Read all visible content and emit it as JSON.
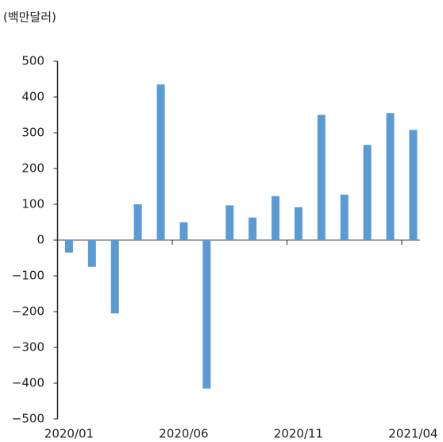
{
  "chart_data": {
    "type": "bar",
    "ylabel": "(백만달러)",
    "categories": [
      "2020/01",
      null,
      null,
      null,
      null,
      "2020/06",
      null,
      null,
      null,
      null,
      "2020/11",
      null,
      null,
      null,
      null,
      "2021/04"
    ],
    "values": [
      -35,
      -75,
      -205,
      100,
      435,
      50,
      -415,
      97,
      63,
      123,
      92,
      350,
      127,
      266,
      355,
      308
    ],
    "color": "#5b9bd5",
    "ylim": [
      -500,
      500
    ],
    "yticks": [
      {
        "value": -500,
        "label": "−500"
      },
      {
        "value": -400,
        "label": "−400"
      },
      {
        "value": -300,
        "label": "−300"
      },
      {
        "value": -200,
        "label": "−200"
      },
      {
        "value": -100,
        "label": "−100"
      },
      0,
      100,
      200,
      300,
      400,
      500
    ],
    "grid": false
  }
}
